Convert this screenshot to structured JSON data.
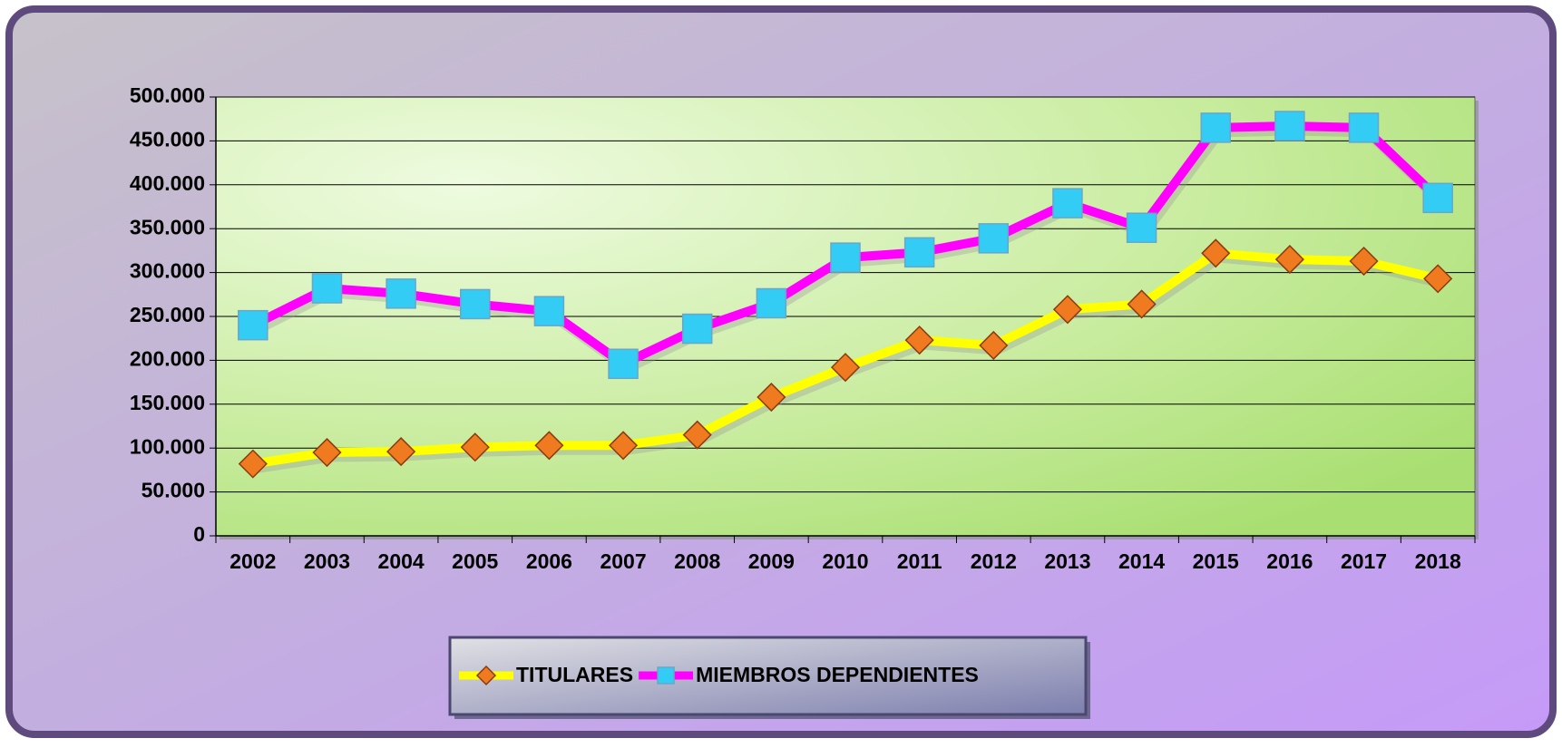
{
  "chart_data": {
    "type": "line",
    "categories": [
      "2002",
      "2003",
      "2004",
      "2005",
      "2006",
      "2007",
      "2008",
      "2009",
      "2010",
      "2011",
      "2012",
      "2013",
      "2014",
      "2015",
      "2016",
      "2017",
      "2018"
    ],
    "series": [
      {
        "name": "TITULARES",
        "color": "#ffff00",
        "marker": "diamond",
        "marker_color": "#f07a20",
        "values": [
          82000,
          95000,
          96000,
          101000,
          103000,
          103000,
          115000,
          158000,
          192000,
          223000,
          217000,
          258000,
          264000,
          322000,
          315000,
          313000,
          293000
        ]
      },
      {
        "name": "MIEMBROS DEPENDIENTES",
        "color": "#ff00ff",
        "marker": "square",
        "marker_color": "#33ccf5",
        "values": [
          240000,
          282000,
          276000,
          264000,
          256000,
          196000,
          236000,
          265000,
          317000,
          323000,
          339000,
          379000,
          351000,
          465000,
          467000,
          465000,
          385000
        ]
      }
    ],
    "ylim": [
      0,
      500000
    ],
    "yticks": [
      0,
      {
        "value": 50000,
        "label": "50.000"
      },
      {
        "value": 100000,
        "label": "100.000"
      },
      {
        "value": 150000,
        "label": "150.000"
      },
      {
        "value": 200000,
        "label": "200.000"
      },
      {
        "value": 250000,
        "label": "250.000"
      },
      {
        "value": 300000,
        "label": "300.000"
      },
      {
        "value": 350000,
        "label": "350.000"
      },
      {
        "value": 400000,
        "label": "400.000"
      },
      {
        "value": 450000,
        "label": "450.000"
      },
      {
        "value": 500000,
        "label": "500.000"
      }
    ],
    "grid": true,
    "legend": "bottom"
  }
}
